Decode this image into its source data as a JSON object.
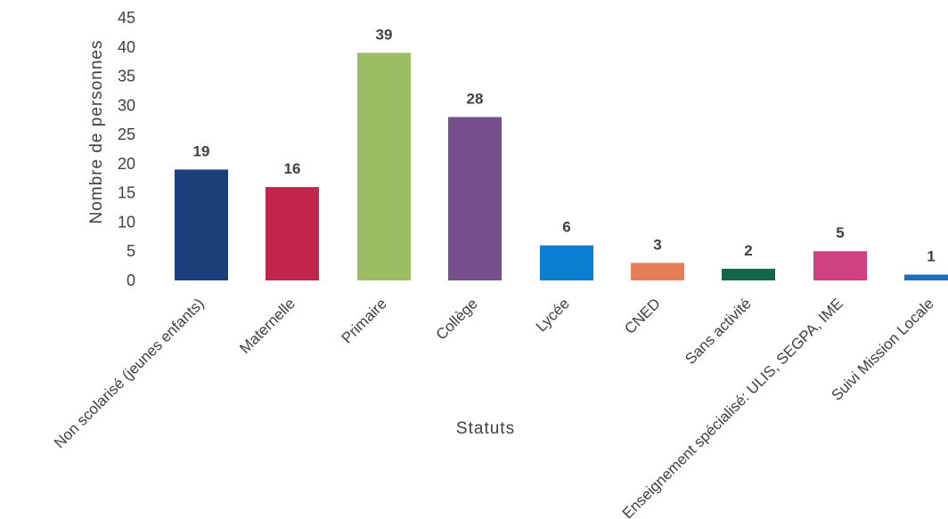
{
  "chart_data": {
    "type": "bar",
    "title": "",
    "xlabel": "Statuts",
    "ylabel": "Nombre de personnes",
    "ylim": [
      0,
      45
    ],
    "yticks": [
      0,
      5,
      10,
      15,
      20,
      25,
      30,
      35,
      40,
      45
    ],
    "grid": false,
    "legend": "none",
    "categories": [
      "Non scolarisé (jeunes enfants)",
      "Maternelle",
      "Primaire",
      "Collège",
      "Lycée",
      "CNED",
      "Sans activité",
      "Enseignement spécialisé: ULIS, SEGPA, IME",
      "Suivi Mission Locale"
    ],
    "values": [
      19,
      16,
      39,
      28,
      6,
      3,
      2,
      5,
      1
    ],
    "colors": [
      "#1a3f7a",
      "#c0264b",
      "#9dbd64",
      "#76508c",
      "#0a7fd1",
      "#e67e57",
      "#13664a",
      "#d0417f",
      "#1a6fc1"
    ]
  }
}
